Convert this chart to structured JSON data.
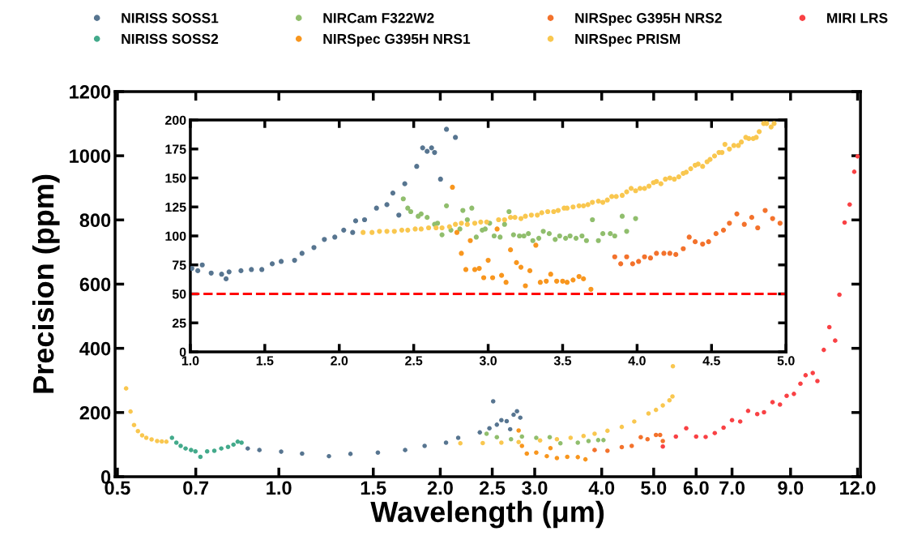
{
  "chart_data": [
    {
      "type": "scatter",
      "xlabel": "Wavelength (μm)",
      "ylabel": "Precision (ppm)",
      "log": "x",
      "marker": "circle",
      "legend": "top",
      "xlim": [
        0.495,
        12.15
      ],
      "xticks": [
        0.5,
        0.7,
        {
          "value": 1,
          "label": "1.0"
        },
        1.5,
        {
          "value": 2,
          "label": "2.0"
        },
        2.5,
        {
          "value": 3,
          "label": "3.0"
        },
        {
          "value": 4,
          "label": "4.0"
        },
        {
          "value": 5,
          "label": "5.0"
        },
        {
          "value": 6,
          "label": "6.0"
        },
        {
          "value": 7,
          "label": "7.0"
        },
        {
          "value": 9,
          "label": "9.0"
        },
        {
          "value": 12,
          "label": "12.0"
        }
      ],
      "ylim": [
        0,
        1200
      ],
      "yticks": [
        0,
        200,
        400,
        600,
        800,
        1000,
        1200
      ],
      "series": [
        {
          "name": "NIRISS SOSS1",
          "color": "#577590",
          "x": [
            0.875,
            0.92,
            1.01,
            1.105,
            1.24,
            1.36,
            1.53,
            1.72,
            1.87,
            2.05,
            2.16,
            2.37,
            2.47,
            2.51,
            2.55,
            2.6,
            2.66,
            2.7,
            2.74,
            2.78,
            2.82
          ],
          "values": [
            88,
            83,
            78,
            72,
            64,
            71,
            75,
            83,
            96,
            106,
            121,
            138,
            151,
            235,
            162,
            176,
            173,
            148,
            193,
            204,
            184
          ]
        },
        {
          "name": "NIRISS SOSS2",
          "color": "#43aa8b",
          "x": [
            0.632,
            0.644,
            0.656,
            0.67,
            0.686,
            0.699,
            0.714,
            0.735,
            0.758,
            0.781,
            0.804,
            0.823,
            0.838,
            0.852
          ],
          "values": [
            121,
            106,
            96,
            88,
            83,
            79,
            62,
            79,
            81,
            88,
            93,
            100,
            109,
            106
          ]
        },
        {
          "name": "NIRCam F322W2",
          "color": "#90be6d",
          "x": [
            2.44,
            2.55,
            2.71,
            2.84,
            3.02,
            3.2,
            3.35,
            3.61,
            3.78,
            3.94,
            4.03
          ],
          "values": [
            134,
            123,
            117,
            125,
            121,
            123,
            104,
            106,
            111,
            114,
            114
          ]
        },
        {
          "name": "NIRSpec G395H NRS1",
          "color": "#f8961e",
          "x": [
            2.8,
            2.84,
            2.9,
            3.02,
            3.16,
            3.21,
            3.3,
            3.45,
            3.61,
            3.73
          ],
          "values": [
            144,
            96,
            72,
            75,
            64,
            89,
            58,
            62,
            61,
            54
          ]
        },
        {
          "name": "NIRSpec G395H NRS2",
          "color": "#f3722c",
          "x": [
            3.88,
            4.1,
            4.36,
            4.55,
            4.73,
            4.87,
            5.05,
            5.14,
            5.2
          ],
          "values": [
            83,
            81,
            92,
            96,
            123,
            117,
            130,
            130,
            111
          ]
        },
        {
          "name": "NIRSpec PRISM",
          "color": "#f9c74f",
          "x": [
            0.519,
            0.529,
            0.537,
            0.546,
            0.556,
            0.566,
            0.579,
            0.593,
            0.605,
            0.617,
            2.18,
            2.4,
            2.6,
            2.8,
            3.07,
            3.3,
            3.5,
            3.7,
            3.88,
            4.1,
            4.36,
            4.6,
            4.89,
            5.05,
            5.2,
            5.35,
            5.42,
            5.43
          ],
          "values": [
            275,
            203,
            161,
            142,
            129,
            121,
            116,
            111,
            110,
            109,
            104,
            105,
            106,
            108,
            113,
            117,
            121,
            127,
            134,
            143,
            155,
            172,
            197,
            208,
            222,
            238,
            250,
            344
          ]
        },
        {
          "name": "MIRI LRS",
          "color": "#f94144",
          "x": [
            5.2,
            5.5,
            5.75,
            6.0,
            6.25,
            6.5,
            6.75,
            7.0,
            7.25,
            7.5,
            7.8,
            8.03,
            8.33,
            8.6,
            8.85,
            9.13,
            9.39,
            9.6,
            9.9,
            10.1,
            10.38,
            10.63,
            10.9,
            11.1,
            11.35,
            11.6,
            11.83,
            12.0
          ],
          "values": [
            94,
            125,
            151,
            125,
            124,
            136,
            153,
            176,
            172,
            205,
            195,
            201,
            232,
            225,
            252,
            258,
            290,
            316,
            323,
            298,
            395,
            466,
            424,
            567,
            792,
            848,
            950,
            998
          ]
        }
      ]
    },
    {
      "type": "scatter",
      "marker": "circle",
      "xlim": [
        1,
        5
      ],
      "xticks": [
        {
          "value": 1,
          "label": "1.0"
        },
        1.5,
        {
          "value": 2,
          "label": "2.0"
        },
        2.5,
        {
          "value": 3,
          "label": "3.0"
        },
        3.5,
        {
          "value": 4,
          "label": "4.0"
        },
        4.5,
        {
          "value": 5,
          "label": "5.0"
        }
      ],
      "ylim": [
        0,
        200
      ],
      "yticks": [
        0,
        25,
        50,
        75,
        100,
        125,
        150,
        175,
        200
      ],
      "ref_lines": [
        {
          "axis": "y",
          "value": 50,
          "color": "#ff0000",
          "line_style": "dashed"
        }
      ],
      "series": [
        {
          "color": "#577590",
          "x": [
            1.01,
            1.05,
            1.08,
            1.14,
            1.21,
            1.24,
            1.26,
            1.34,
            1.41,
            1.48,
            1.55,
            1.61,
            1.7,
            1.75,
            1.83,
            1.9,
            1.97,
            2.03,
            2.09,
            2.11,
            2.17,
            2.25,
            2.32,
            2.36,
            2.4,
            2.44,
            2.52,
            2.56,
            2.59,
            2.62,
            2.64,
            2.68,
            2.72,
            2.78
          ],
          "values": [
            72,
            70,
            75,
            68,
            67,
            63,
            69,
            70,
            71,
            71,
            76,
            78,
            79,
            85,
            90,
            97,
            99,
            105,
            103,
            113,
            114,
            124,
            127,
            137,
            118,
            145,
            160,
            176,
            173,
            176,
            172,
            149,
            192,
            185
          ]
        },
        {
          "color": "#90be6d",
          "x": [
            2.43,
            2.46,
            2.48,
            2.53,
            2.55,
            2.59,
            2.64,
            2.66,
            2.69,
            2.72,
            2.75,
            2.81,
            2.83,
            2.86,
            2.89,
            2.92,
            2.96,
            2.98,
            3.01,
            3.04,
            3.08,
            3.11,
            3.14,
            3.17,
            3.21,
            3.24,
            3.27,
            3.3,
            3.34,
            3.37,
            3.41,
            3.45,
            3.48,
            3.52,
            3.55,
            3.59,
            3.63,
            3.66,
            3.7,
            3.74,
            3.77,
            3.82,
            3.85,
            3.9,
            3.93,
            3.99
          ],
          "values": [
            132,
            124,
            121,
            117,
            119,
            116,
            110,
            111,
            101,
            126,
            105,
            106,
            122,
            114,
            124,
            99,
            105,
            106,
            111,
            100,
            99,
            110,
            121,
            101,
            100,
            100,
            102,
            96,
            98,
            104,
            102,
            97,
            100,
            98,
            100,
            98,
            100,
            96,
            114,
            96,
            102,
            102,
            100,
            117,
            104,
            115
          ]
        },
        {
          "color": "#f8961e",
          "x": [
            2.76,
            2.79,
            2.82,
            2.85,
            2.88,
            2.91,
            2.94,
            2.97,
            3.0,
            3.03,
            3.06,
            3.09,
            3.12,
            3.15,
            3.19,
            3.22,
            3.25,
            3.28,
            3.32,
            3.35,
            3.39,
            3.42,
            3.46,
            3.5,
            3.53,
            3.57,
            3.61,
            3.64,
            3.69
          ],
          "values": [
            142,
            103,
            85,
            71,
            96,
            71,
            72,
            64,
            79,
            64,
            106,
            66,
            60,
            88,
            77,
            73,
            57,
            70,
            92,
            60,
            61,
            67,
            61,
            61,
            60,
            62,
            65,
            63,
            54
          ]
        },
        {
          "color": "#f3722c",
          "x": [
            3.85,
            3.89,
            3.93,
            3.97,
            4.01,
            4.05,
            4.09,
            4.13,
            4.18,
            4.22,
            4.26,
            4.31,
            4.35,
            4.39,
            4.44,
            4.48,
            4.53,
            4.58,
            4.62,
            4.67,
            4.72,
            4.77,
            4.81,
            4.86,
            4.91,
            4.96
          ],
          "values": [
            82,
            76,
            82,
            76,
            78,
            82,
            81,
            85,
            85,
            85,
            84,
            89,
            99,
            95,
            93,
            95,
            102,
            105,
            111,
            119,
            110,
            116,
            107,
            122,
            115,
            111
          ]
        },
        {
          "color": "#f9c74f",
          "x": [
            2.16,
            2.22,
            2.27,
            2.32,
            2.37,
            2.42,
            2.46,
            2.51,
            2.55,
            2.6,
            2.65,
            2.69,
            2.74,
            2.78,
            2.82,
            2.86,
            2.91,
            2.95,
            2.99,
            3.07,
            3.11,
            3.15,
            3.18,
            3.22,
            3.25,
            3.29,
            3.33,
            3.36,
            3.4,
            3.44,
            3.47,
            3.51,
            3.53,
            3.57,
            3.61,
            3.64,
            3.67,
            3.7,
            3.74,
            3.77,
            3.8,
            3.83,
            3.86,
            3.9,
            3.93,
            3.96,
            3.99,
            4.02,
            4.05,
            4.08,
            4.11,
            4.13,
            4.16,
            4.19,
            4.22,
            4.25,
            4.28,
            4.31,
            4.33,
            4.36,
            4.39,
            4.41,
            4.44,
            4.47,
            4.49,
            4.52,
            4.55,
            4.57,
            4.59,
            4.62,
            4.65,
            4.68,
            4.7,
            4.73,
            4.75,
            4.78,
            4.8,
            4.82,
            4.85,
            4.87,
            4.9,
            4.92
          ],
          "values": [
            103,
            103,
            104,
            104,
            104,
            105,
            105,
            106,
            106,
            107,
            107,
            107,
            108,
            110,
            111,
            110,
            111,
            112,
            112,
            114,
            114,
            116,
            116,
            115,
            117,
            118,
            118,
            120,
            121,
            121,
            122,
            124,
            124,
            125,
            126,
            126,
            127,
            129,
            130,
            129,
            131,
            134,
            134,
            135,
            138,
            141,
            139,
            141,
            141,
            143,
            146,
            147,
            145,
            149,
            150,
            149,
            151,
            154,
            155,
            158,
            161,
            162,
            160,
            164,
            166,
            169,
            172,
            172,
            179,
            175,
            178,
            178,
            181,
            185,
            184,
            184,
            185,
            190,
            197,
            197,
            194,
            197
          ]
        }
      ]
    }
  ]
}
